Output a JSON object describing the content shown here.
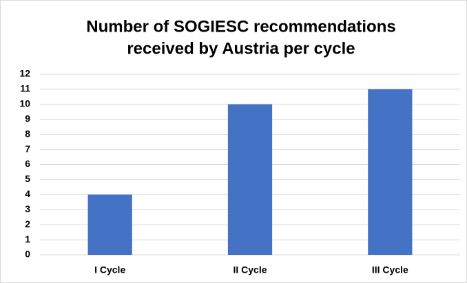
{
  "chart_data": {
    "type": "bar",
    "title": [
      "Number of SOGIESC recommendations",
      "received by Austria per cycle"
    ],
    "categories": [
      "I Cycle",
      "II Cycle",
      "III Cycle"
    ],
    "values": [
      4,
      10,
      11
    ],
    "color": "#4472c4",
    "ylim": [
      0,
      12
    ],
    "yticks": [
      0,
      1,
      2,
      3,
      4,
      5,
      6,
      7,
      8,
      9,
      10,
      11,
      12
    ],
    "grid": true
  }
}
